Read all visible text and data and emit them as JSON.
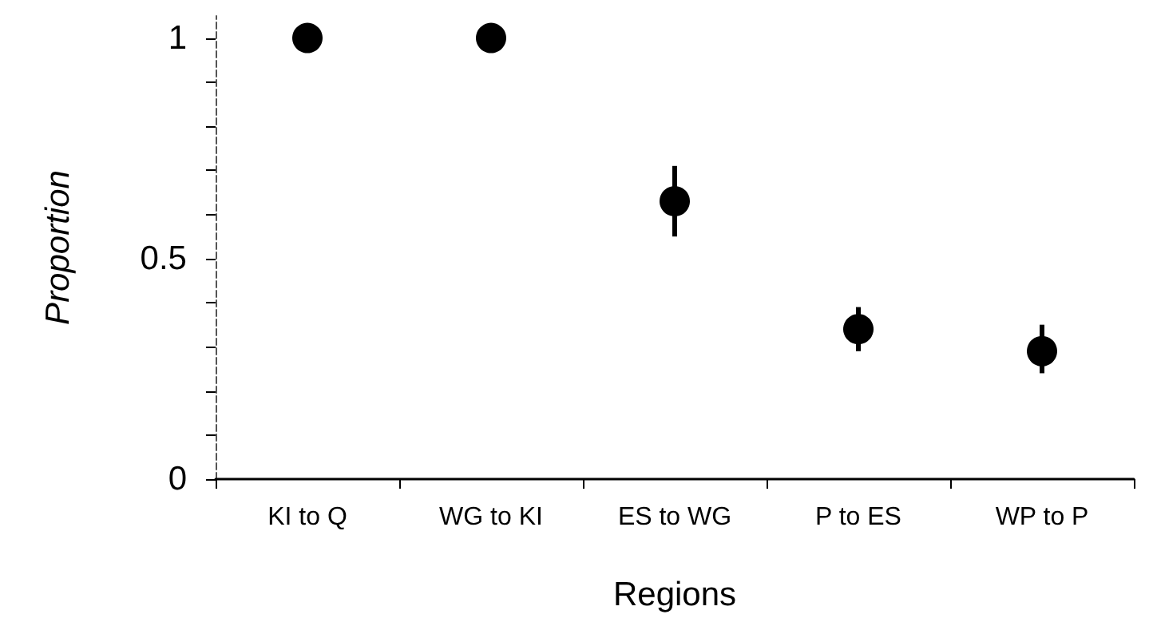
{
  "chart_data": {
    "type": "scatter",
    "xlabel": "Regions",
    "ylabel": "Proportion",
    "categories": [
      "KI to Q",
      "WG to KI",
      "ES to WG",
      "P to ES",
      "WP to P"
    ],
    "values": [
      1,
      1,
      0.63,
      0.34,
      0.29
    ],
    "errors": [
      null,
      null,
      [
        0.55,
        0.71
      ],
      [
        0.29,
        0.39
      ],
      [
        0.24,
        0.35
      ]
    ],
    "color": "#000000",
    "marker": "circle",
    "grid": false,
    "ylim": [
      0,
      1.05
    ],
    "yticks": [
      0,
      {
        "value": 0.1,
        "label": null
      },
      {
        "value": 0.2,
        "label": null
      },
      {
        "value": 0.3,
        "label": null
      },
      {
        "value": 0.4,
        "label": null
      },
      {
        "value": 0.5,
        "label": "0.5"
      },
      {
        "value": 0.6,
        "label": null
      },
      {
        "value": 0.7,
        "label": null
      },
      {
        "value": 0.8,
        "label": null
      },
      {
        "value": 0.9,
        "label": null
      },
      1
    ]
  }
}
